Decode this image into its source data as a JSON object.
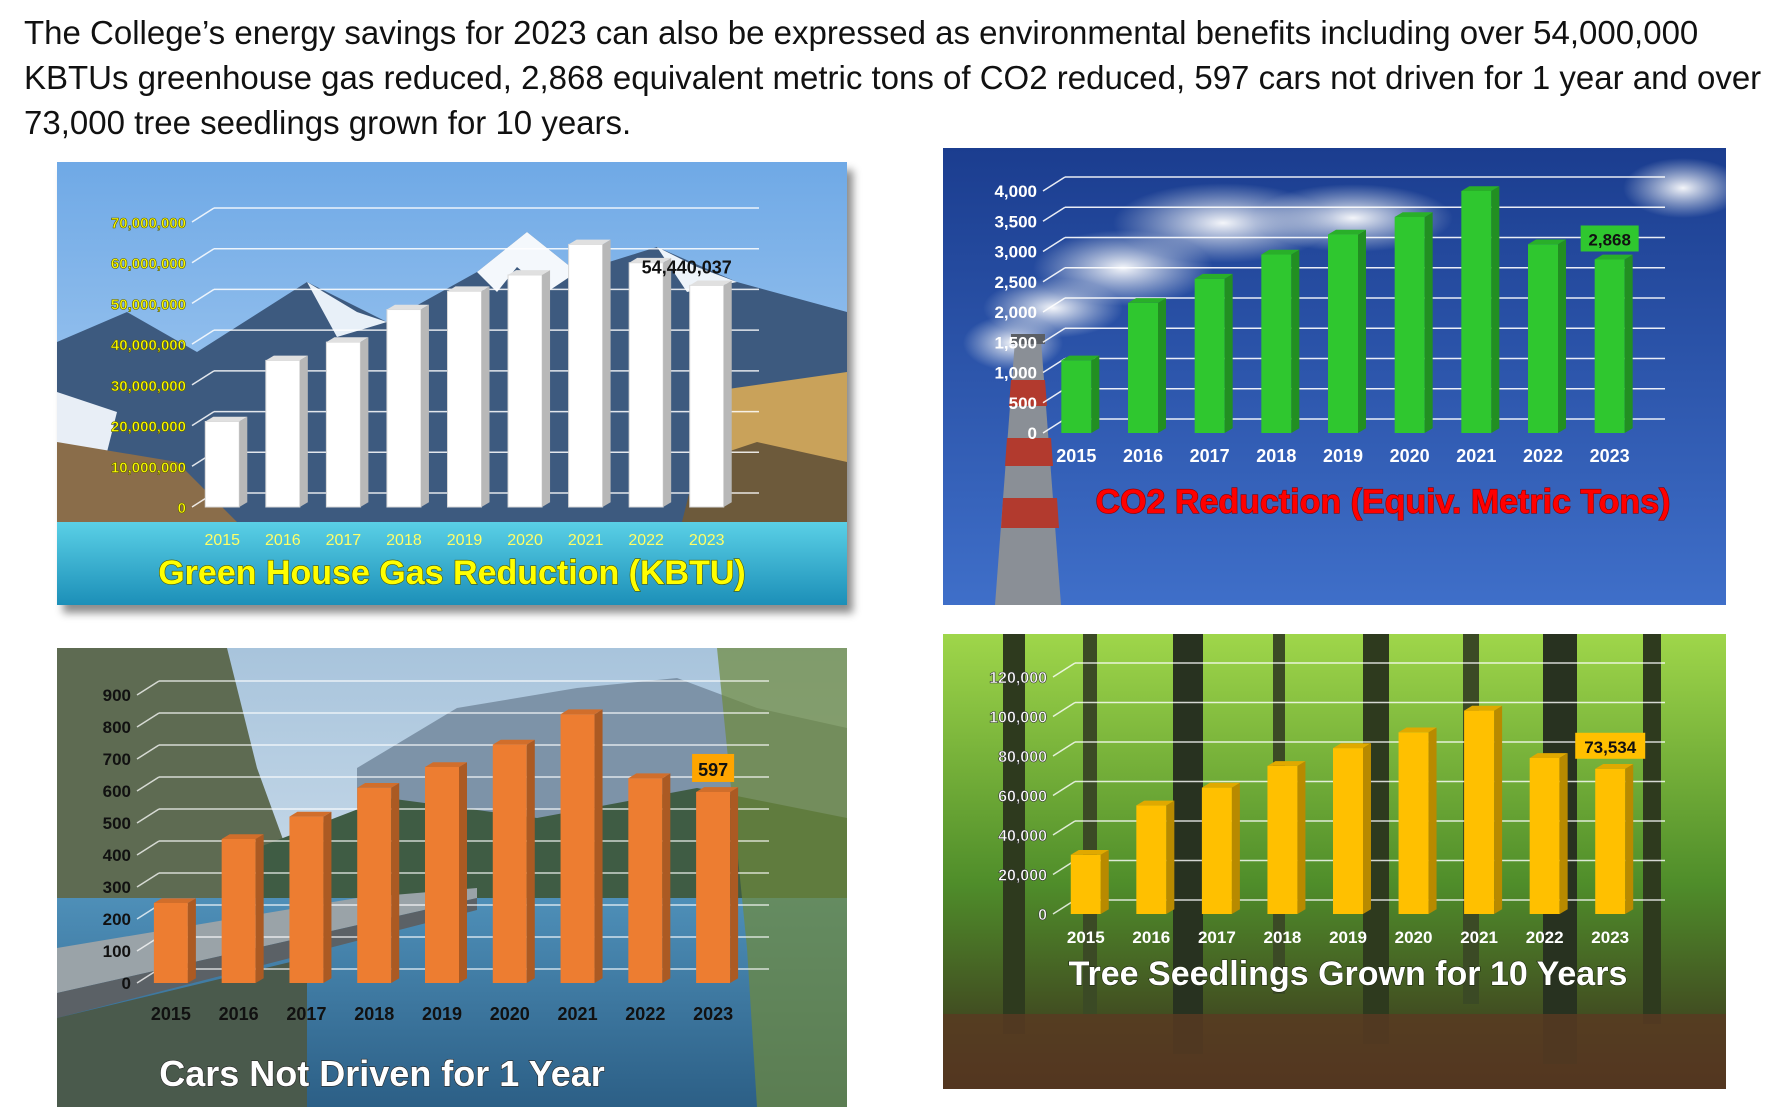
{
  "intro_text": "The College’s energy savings for 2023 can also be expressed as environmental benefits including over 54,000,000 KBTUs greenhouse gas reduced, 2,868 equivalent metric tons of CO2 reduced, 597 cars not driven for 1 year and over 73,000 tree seedlings grown for 10 years.",
  "colors": {
    "ghg_bar": "#ffffff",
    "co2_bar": "#2fc72f",
    "cars_bar": "#ed7d31",
    "trees_bar": "#ffc000",
    "ghg_title": "#ffff00",
    "co2_title": "#ff0000",
    "white_title": "#ffffff"
  },
  "chart_data": [
    {
      "type": "bar",
      "title": "Green House Gas Reduction (KBTU)",
      "categories": [
        "2015",
        "2016",
        "2017",
        "2018",
        "2019",
        "2020",
        "2021",
        "2022",
        "2023"
      ],
      "values": [
        21000000,
        36000000,
        40500000,
        48500000,
        53000000,
        57000000,
        64500000,
        60000000,
        54440037
      ],
      "ylim": [
        0,
        70000000
      ],
      "yticks": [
        "0",
        "10,000,000",
        "20,000,000",
        "30,000,000",
        "40,000,000",
        "50,000,000",
        "60,000,000",
        "70,000,000"
      ],
      "data_label": "54,440,037",
      "grid": true,
      "background": "snowy mountains and glacier lake"
    },
    {
      "type": "bar",
      "title": "CO2 Reduction (Equiv. Metric Tons)",
      "categories": [
        "2015",
        "2016",
        "2017",
        "2018",
        "2019",
        "2020",
        "2021",
        "2022",
        "2023"
      ],
      "values": [
        1200,
        2150,
        2550,
        2950,
        3280,
        3570,
        4000,
        3120,
        2868
      ],
      "ylim": [
        0,
        4000
      ],
      "yticks": [
        "0",
        "500",
        "1,000",
        "1,500",
        "2,000",
        "2,500",
        "3,000",
        "3,500",
        "4,000"
      ],
      "data_label": "2,868",
      "grid": true,
      "background": "smokestack against blue sky"
    },
    {
      "type": "bar",
      "title": "Cars Not Driven for 1 Year",
      "categories": [
        "2015",
        "2016",
        "2017",
        "2018",
        "2019",
        "2020",
        "2021",
        "2022",
        "2023"
      ],
      "values": [
        250,
        450,
        520,
        610,
        675,
        745,
        840,
        640,
        597
      ],
      "ylim": [
        0,
        900
      ],
      "yticks": [
        "0",
        "100",
        "200",
        "300",
        "400",
        "500",
        "600",
        "700",
        "800",
        "900"
      ],
      "data_label": "597",
      "grid": true,
      "background": "road along mountain lake"
    },
    {
      "type": "bar",
      "title": "Tree Seedlings Grown for 10 Years",
      "categories": [
        "2015",
        "2016",
        "2017",
        "2018",
        "2019",
        "2020",
        "2021",
        "2022",
        "2023"
      ],
      "values": [
        30000,
        55000,
        64000,
        75000,
        84000,
        92000,
        103000,
        79000,
        73534
      ],
      "ylim": [
        0,
        120000
      ],
      "yticks": [
        "0",
        "20,000",
        "40,000",
        "60,000",
        "80,000",
        "100,000",
        "120,000"
      ],
      "data_label": "73,534",
      "grid": true,
      "background": "green forest"
    }
  ]
}
